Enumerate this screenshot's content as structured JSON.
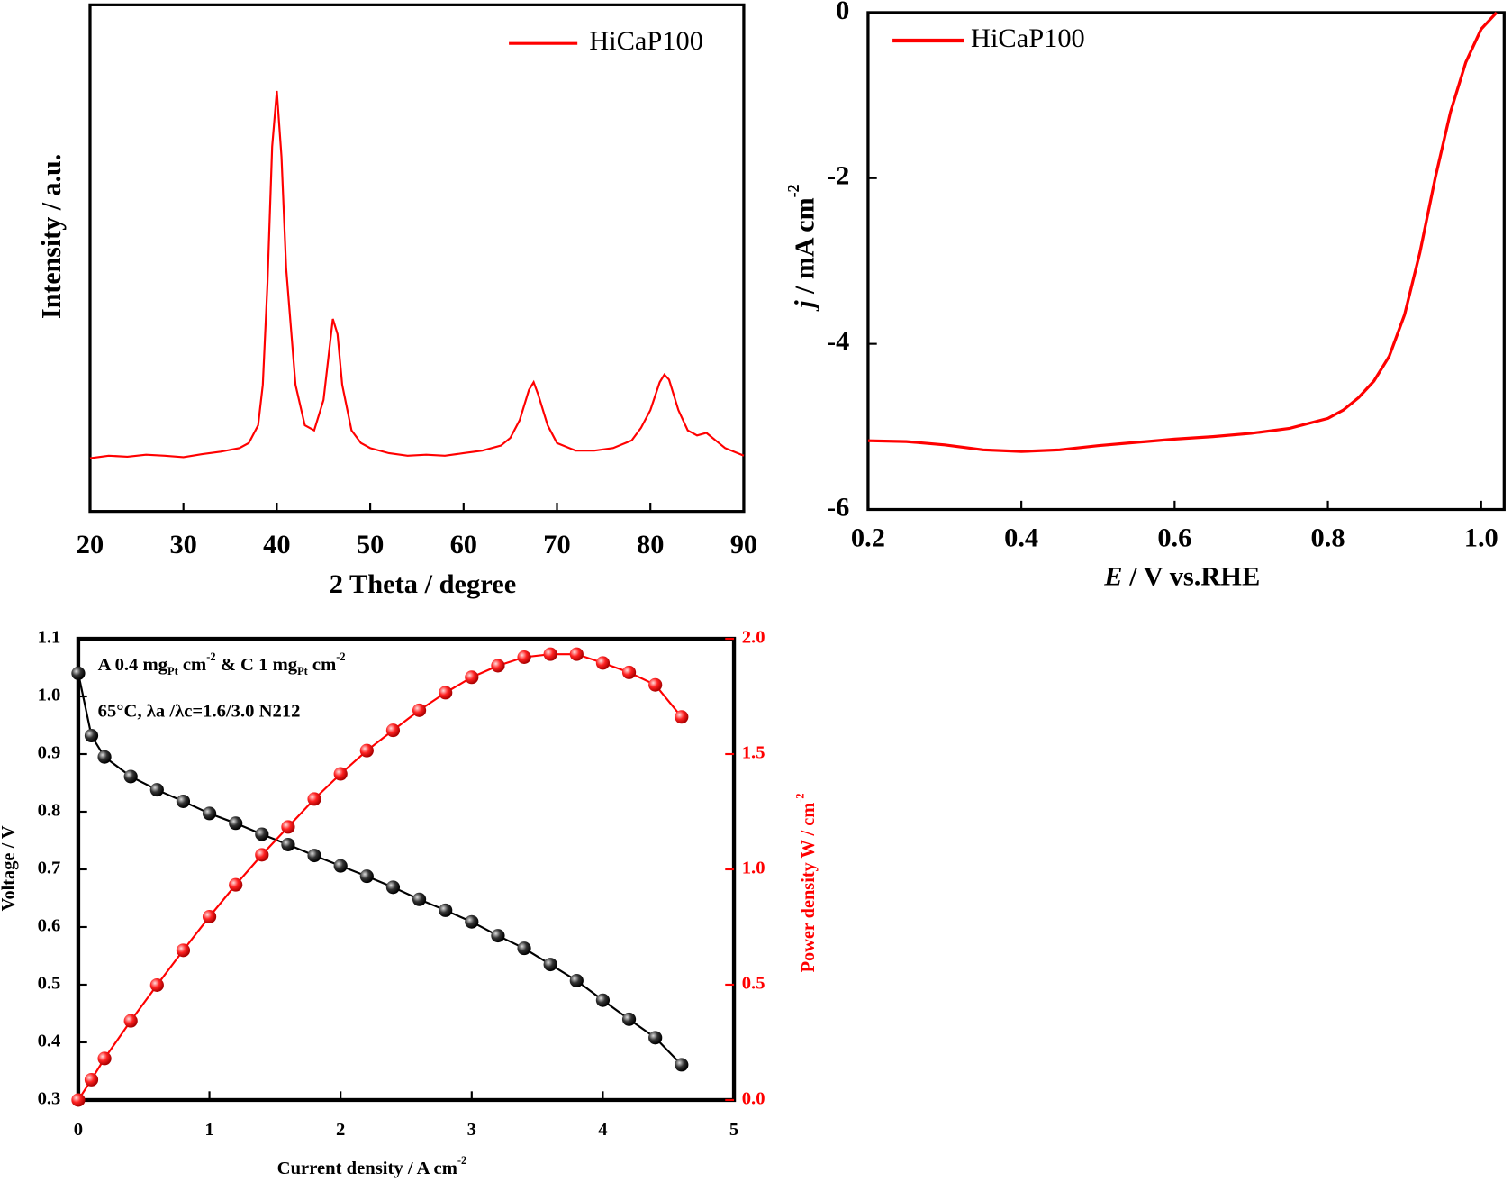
{
  "chart_data": [
    {
      "type": "line",
      "xlabel": [
        {
          "text": "2 Theta / degree"
        }
      ],
      "ylabel": [
        {
          "text": "Intensity / a.u."
        }
      ],
      "xlim": [
        20,
        90
      ],
      "xticks": [
        20,
        30,
        40,
        50,
        60,
        70,
        80,
        90
      ],
      "ylim": [
        0,
        100
      ],
      "yticks": [],
      "legend": "upper right",
      "x": [
        20,
        22,
        24,
        26,
        28,
        30,
        32,
        34,
        36,
        37,
        38,
        38.5,
        39,
        39.5,
        40,
        40.5,
        41,
        42,
        43,
        44,
        45,
        45.5,
        46,
        46.5,
        47,
        48,
        49,
        50,
        52,
        54,
        56,
        58,
        60,
        62,
        64,
        65,
        66,
        67,
        67.5,
        68,
        69,
        70,
        72,
        74,
        76,
        78,
        79,
        80,
        81,
        81.5,
        82,
        83,
        84,
        85,
        86,
        87,
        88,
        90
      ],
      "series": [
        {
          "name": "HiCaP100",
          "color": "#ff0000",
          "values": [
            10.5,
            11,
            10.8,
            11.2,
            11,
            10.7,
            11.3,
            11.8,
            12.5,
            13.5,
            17,
            25,
            45,
            72,
            83,
            70,
            48,
            25,
            17,
            16,
            22,
            30,
            38,
            35,
            25,
            16,
            13.5,
            12.5,
            11.5,
            11,
            11.2,
            11,
            11.5,
            12,
            13,
            14.5,
            18,
            24,
            25.5,
            23,
            17,
            13.5,
            12,
            12,
            12.5,
            14,
            16.5,
            20,
            25.5,
            27,
            26,
            20,
            16,
            15,
            15.5,
            14,
            12.5,
            11
          ]
        }
      ]
    },
    {
      "type": "line",
      "xlabel": [
        {
          "text": "E",
          "style": "italic"
        },
        {
          "text": " / V vs.RHE"
        }
      ],
      "ylabel": [
        {
          "text": "j",
          "style": "italic"
        },
        {
          "text": " / mA cm"
        },
        {
          "text": "-2",
          "style": "sup"
        }
      ],
      "xlim": [
        0.2,
        1.03
      ],
      "xticks": [
        0.2,
        0.4,
        0.6,
        0.8,
        {
          "value": 1,
          "label": "1.0"
        }
      ],
      "ylim": [
        -6,
        0
      ],
      "yticks": [
        -6,
        -4,
        -2,
        0
      ],
      "legend": "upper left",
      "x": [
        0.2,
        0.25,
        0.3,
        0.35,
        0.4,
        0.45,
        0.5,
        0.55,
        0.6,
        0.65,
        0.7,
        0.75,
        0.8,
        0.82,
        0.84,
        0.86,
        0.88,
        0.9,
        0.92,
        0.94,
        0.96,
        0.98,
        1.0,
        1.02
      ],
      "series": [
        {
          "name": "HiCaP100",
          "color": "#ff0000",
          "values": [
            -5.17,
            -5.18,
            -5.22,
            -5.28,
            -5.3,
            -5.28,
            -5.23,
            -5.19,
            -5.15,
            -5.12,
            -5.08,
            -5.02,
            -4.9,
            -4.8,
            -4.65,
            -4.45,
            -4.15,
            -3.65,
            -2.9,
            -2.0,
            -1.2,
            -0.6,
            -0.2,
            0
          ]
        }
      ]
    },
    {
      "type": "line",
      "markers": true,
      "xlabel": [
        {
          "text": "Current density / A cm"
        },
        {
          "text": "-2",
          "style": "sup"
        }
      ],
      "ylabel": [
        {
          "text": "Voltage / V"
        }
      ],
      "y2label": [
        {
          "text": "Power density W / cm"
        },
        {
          "text": "-2",
          "style": "sup"
        }
      ],
      "annotations": [
        [
          {
            "text": "A 0.4 mg"
          },
          {
            "text": "Pt",
            "style": "sub"
          },
          {
            "text": " cm"
          },
          {
            "text": "-2",
            "style": "sup"
          },
          {
            "text": "  & C 1 mg"
          },
          {
            "text": "Pt",
            "style": "sub"
          },
          {
            "text": " cm"
          },
          {
            "text": "-2",
            "style": "sup"
          }
        ],
        [
          {
            "text": "65°C, λa /λc=1.6/3.0 N212"
          }
        ]
      ],
      "xlim": [
        0,
        5
      ],
      "xticks": [
        0,
        1,
        2,
        3,
        4,
        5
      ],
      "ylim": [
        0.3,
        1.1
      ],
      "yticks": [
        0.3,
        0.4,
        0.5,
        0.6,
        0.7,
        0.8,
        0.9,
        {
          "value": 1,
          "label": "1.0"
        },
        1.1
      ],
      "y2lim": [
        0,
        2
      ],
      "y2ticks": [
        {
          "value": 0,
          "label": "0.0"
        },
        0.5,
        {
          "value": 1,
          "label": "1.0"
        },
        1.5,
        {
          "value": 2,
          "label": "2.0"
        }
      ],
      "y2color": "#ff0000",
      "x": [
        0,
        0.1,
        0.2,
        0.4,
        0.6,
        0.8,
        1.0,
        1.2,
        1.4,
        1.6,
        1.8,
        2.0,
        2.2,
        2.4,
        2.6,
        2.8,
        3.0,
        3.2,
        3.4,
        3.6,
        3.8,
        4.0,
        4.2,
        4.4,
        4.6
      ],
      "series": [
        {
          "color": "#000000",
          "values": [
            1.04,
            0.932,
            0.895,
            0.861,
            0.838,
            0.818,
            0.797,
            0.78,
            0.761,
            0.743,
            0.724,
            0.706,
            0.688,
            0.669,
            0.648,
            0.629,
            0.609,
            0.585,
            0.563,
            0.535,
            0.507,
            0.473,
            0.44,
            0.408,
            0.361
          ]
        },
        {
          "color": "#ff0000",
          "axis": "y2",
          "values": [
            0,
            0.088,
            0.18,
            0.343,
            0.498,
            0.649,
            0.795,
            0.933,
            1.063,
            1.184,
            1.305,
            1.414,
            1.515,
            1.603,
            1.69,
            1.766,
            1.833,
            1.883,
            1.92,
            1.933,
            1.933,
            1.895,
            1.854,
            1.8,
            1.661
          ]
        }
      ]
    }
  ]
}
